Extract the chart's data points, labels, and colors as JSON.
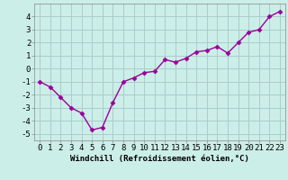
{
  "x": [
    0,
    1,
    2,
    3,
    4,
    5,
    6,
    7,
    8,
    9,
    10,
    11,
    12,
    13,
    14,
    15,
    16,
    17,
    18,
    19,
    20,
    21,
    22,
    23
  ],
  "y": [
    -1.0,
    -1.4,
    -2.2,
    -3.0,
    -3.4,
    -4.7,
    -4.5,
    -2.6,
    -1.0,
    -0.7,
    -0.3,
    -0.2,
    0.7,
    0.5,
    0.8,
    1.3,
    1.4,
    1.7,
    1.2,
    2.0,
    2.8,
    3.0,
    4.0,
    4.4
  ],
  "line_color": "#990099",
  "marker": "D",
  "marker_size": 2.5,
  "bg_color": "#cceee8",
  "grid_color": "#aacccc",
  "xlabel": "Windchill (Refroidissement éolien,°C)",
  "xlim_min": -0.5,
  "xlim_max": 23.5,
  "ylim_min": -5.5,
  "ylim_max": 5.0,
  "yticks": [
    -5,
    -4,
    -3,
    -2,
    -1,
    0,
    1,
    2,
    3,
    4
  ],
  "xticks": [
    0,
    1,
    2,
    3,
    4,
    5,
    6,
    7,
    8,
    9,
    10,
    11,
    12,
    13,
    14,
    15,
    16,
    17,
    18,
    19,
    20,
    21,
    22,
    23
  ],
  "xlabel_fontsize": 6.5,
  "tick_fontsize": 6.5,
  "line_width": 1.0
}
